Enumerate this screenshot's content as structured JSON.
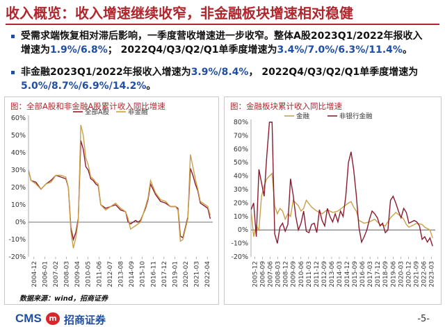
{
  "header": {
    "title": "收入概览：收入增速继续收窄，非金融板块增速相对稳健"
  },
  "bullets": [
    {
      "pre": "受需求端恢复相对滞后影响，一季度营收增速进一步收窄。整体A股2023Q1/2022年报收入增速为",
      "hl1": "1.9%/6.8%",
      "mid": "； 2022Q4/Q3/Q2/Q1单季度增速为",
      "hl2": "3.4%/7.0%/6.3%/11.4%",
      "post": "。"
    },
    {
      "pre": "非金融2023Q1/2022年报收入增速为",
      "hl1": "3.9%/8.4%",
      "mid": "， 2022Q4/Q3/Q2/Q1单季度增速为",
      "hl2": "5.0%/8.7%/6.9%/14.2%",
      "post": "。"
    }
  ],
  "source": "数据来源：wind，招商证券",
  "footer": {
    "cms": "CMS",
    "logo_mark": "m",
    "brand": "招商证券",
    "page": "-5-"
  },
  "colors": {
    "title_red": "#b0262c",
    "accent_blue": "#1f4ea3",
    "series_dark": "#8b1a2e",
    "series_gold": "#c9a046"
  },
  "chart_data": [
    {
      "type": "line",
      "title": "图：全部A股和非金融A股累计收入同比增速",
      "ylim": [
        -20,
        60
      ],
      "yticks": [
        -20,
        -10,
        0,
        10,
        20,
        30,
        40,
        50,
        60
      ],
      "ytick_labels": [
        "-20%",
        "-10%",
        "0%",
        "10%",
        "20%",
        "30%",
        "40%",
        "50%",
        "60%"
      ],
      "x_range": [
        2004.75,
        2023.25
      ],
      "xtick_labels": [
        "2004-12",
        "2006-01",
        "2007-02",
        "2008-03",
        "2009-04",
        "2010-05",
        "2011-06",
        "2012-07",
        "2013-08",
        "2014-09",
        "2015-10",
        "2016-11",
        "2017-12",
        "2019-01",
        "2020-02",
        "2021-03",
        "2022-04"
      ],
      "legend_position": "top-center",
      "series": [
        {
          "name": "全部A股",
          "color": "#8b1a2e",
          "points": [
            [
              2004.75,
              30
            ],
            [
              2005.0,
              24
            ],
            [
              2005.5,
              23
            ],
            [
              2006.0,
              19
            ],
            [
              2006.5,
              22
            ],
            [
              2007.0,
              24
            ],
            [
              2007.5,
              27
            ],
            [
              2008.0,
              26
            ],
            [
              2008.5,
              25
            ],
            [
              2008.75,
              20
            ],
            [
              2009.0,
              -3
            ],
            [
              2009.25,
              -10
            ],
            [
              2009.5,
              -6
            ],
            [
              2009.75,
              2
            ],
            [
              2010.0,
              47
            ],
            [
              2010.25,
              42
            ],
            [
              2010.5,
              32
            ],
            [
              2010.75,
              30
            ],
            [
              2011.0,
              25
            ],
            [
              2011.25,
              24
            ],
            [
              2011.5,
              22
            ],
            [
              2011.75,
              21
            ],
            [
              2012.0,
              10
            ],
            [
              2012.5,
              8
            ],
            [
              2013.0,
              9
            ],
            [
              2013.5,
              10
            ],
            [
              2014.0,
              7
            ],
            [
              2014.5,
              6
            ],
            [
              2014.75,
              0
            ],
            [
              2015.0,
              -1
            ],
            [
              2015.5,
              1
            ],
            [
              2015.75,
              0
            ],
            [
              2016.0,
              1
            ],
            [
              2016.5,
              8
            ],
            [
              2016.75,
              13
            ],
            [
              2017.0,
              22
            ],
            [
              2017.5,
              16
            ],
            [
              2018.0,
              12
            ],
            [
              2018.5,
              11
            ],
            [
              2019.0,
              9
            ],
            [
              2019.5,
              9
            ],
            [
              2019.75,
              8
            ],
            [
              2020.0,
              -8
            ],
            [
              2020.25,
              -9
            ],
            [
              2020.5,
              -3
            ],
            [
              2020.75,
              3
            ],
            [
              2021.0,
              31
            ],
            [
              2021.25,
              27
            ],
            [
              2021.5,
              22
            ],
            [
              2021.75,
              18
            ],
            [
              2022.0,
              11
            ],
            [
              2022.5,
              9
            ],
            [
              2022.75,
              8
            ],
            [
              2023.0,
              2
            ]
          ]
        },
        {
          "name": "非金融",
          "color": "#c9a046",
          "points": [
            [
              2004.75,
              30
            ],
            [
              2005.0,
              24
            ],
            [
              2005.5,
              22
            ],
            [
              2006.0,
              19
            ],
            [
              2006.5,
              22
            ],
            [
              2007.0,
              23
            ],
            [
              2007.5,
              27
            ],
            [
              2008.0,
              27
            ],
            [
              2008.5,
              26
            ],
            [
              2008.75,
              20
            ],
            [
              2009.0,
              -5
            ],
            [
              2009.25,
              -15
            ],
            [
              2009.5,
              -9
            ],
            [
              2009.75,
              1
            ],
            [
              2010.0,
              56
            ],
            [
              2010.25,
              50
            ],
            [
              2010.5,
              37
            ],
            [
              2010.75,
              33
            ],
            [
              2011.0,
              26
            ],
            [
              2011.25,
              25
            ],
            [
              2011.5,
              23
            ],
            [
              2011.75,
              22
            ],
            [
              2012.0,
              10
            ],
            [
              2012.5,
              7
            ],
            [
              2013.0,
              9
            ],
            [
              2013.5,
              11
            ],
            [
              2014.0,
              8
            ],
            [
              2014.5,
              6
            ],
            [
              2014.75,
              2
            ],
            [
              2015.0,
              -4
            ],
            [
              2015.5,
              -2
            ],
            [
              2015.75,
              -1
            ],
            [
              2016.0,
              0
            ],
            [
              2016.5,
              9
            ],
            [
              2016.75,
              14
            ],
            [
              2017.0,
              24
            ],
            [
              2017.5,
              17
            ],
            [
              2018.0,
              13
            ],
            [
              2018.5,
              12
            ],
            [
              2019.0,
              9
            ],
            [
              2019.5,
              9
            ],
            [
              2019.75,
              7
            ],
            [
              2020.0,
              -11
            ],
            [
              2020.25,
              -10
            ],
            [
              2020.5,
              -4
            ],
            [
              2020.75,
              2
            ],
            [
              2021.0,
              39
            ],
            [
              2021.25,
              32
            ],
            [
              2021.5,
              25
            ],
            [
              2021.75,
              19
            ],
            [
              2022.0,
              12
            ],
            [
              2022.5,
              10
            ],
            [
              2022.75,
              9
            ],
            [
              2023.0,
              4
            ]
          ]
        }
      ]
    },
    {
      "type": "line",
      "title": "图：金融板块累计收入同比增速",
      "ylim": [
        -20,
        80
      ],
      "yticks": [
        -20,
        -10,
        0,
        10,
        20,
        30,
        40,
        50,
        60,
        70,
        80
      ],
      "ytick_labels": [
        "-20%",
        "-10%",
        "0%",
        "10%",
        "20%",
        "30%",
        "40%",
        "50%",
        "60%",
        "70%",
        "80%"
      ],
      "x_range": [
        2005.75,
        2023.25
      ],
      "xtick_labels": [
        "2005-12",
        "2006-09",
        "2007-06",
        "2008-03",
        "2008-12",
        "2009-09",
        "2010-06",
        "2011-03",
        "2011-12",
        "2012-09",
        "2013-06",
        "2014-03",
        "2014-12",
        "2015-09",
        "2016-06",
        "2017-03",
        "2017-12",
        "2018-09",
        "2019-06",
        "2020-03",
        "2020-12",
        "2021-09",
        "2022-06",
        "2023-03"
      ],
      "legend_position": "top-center",
      "series": [
        {
          "name": "金融",
          "color": "#c9a046",
          "points": [
            [
              2005.75,
              15
            ],
            [
              2006.0,
              -5
            ],
            [
              2006.25,
              3
            ],
            [
              2006.5,
              0
            ],
            [
              2006.75,
              25
            ],
            [
              2007.0,
              33
            ],
            [
              2007.25,
              38
            ],
            [
              2007.5,
              40
            ],
            [
              2007.75,
              42
            ],
            [
              2008.0,
              18
            ],
            [
              2008.25,
              12
            ],
            [
              2008.5,
              16
            ],
            [
              2008.75,
              14
            ],
            [
              2009.0,
              8
            ],
            [
              2009.25,
              12
            ],
            [
              2009.5,
              10
            ],
            [
              2009.75,
              22
            ],
            [
              2010.0,
              20
            ],
            [
              2010.25,
              18
            ],
            [
              2010.5,
              14
            ],
            [
              2010.75,
              16
            ],
            [
              2011.0,
              22
            ],
            [
              2011.5,
              17
            ],
            [
              2012.0,
              14
            ],
            [
              2012.5,
              12
            ],
            [
              2013.0,
              15
            ],
            [
              2013.5,
              13
            ],
            [
              2014.0,
              14
            ],
            [
              2014.5,
              17
            ],
            [
              2015.0,
              20
            ],
            [
              2015.25,
              21
            ],
            [
              2015.5,
              17
            ],
            [
              2015.75,
              14
            ],
            [
              2016.0,
              7
            ],
            [
              2016.5,
              5
            ],
            [
              2017.0,
              6
            ],
            [
              2017.5,
              8
            ],
            [
              2018.0,
              4
            ],
            [
              2018.5,
              3
            ],
            [
              2019.0,
              9
            ],
            [
              2019.5,
              13
            ],
            [
              2020.0,
              10
            ],
            [
              2020.25,
              8
            ],
            [
              2020.5,
              4
            ],
            [
              2020.75,
              2
            ],
            [
              2021.0,
              3
            ],
            [
              2021.5,
              5
            ],
            [
              2022.0,
              4
            ],
            [
              2022.25,
              2
            ],
            [
              2022.5,
              1
            ],
            [
              2022.75,
              0
            ],
            [
              2023.0,
              -6
            ]
          ]
        },
        {
          "name": "非银行金融",
          "color": "#8b1a2e",
          "points": [
            [
              2005.75,
              15
            ],
            [
              2006.0,
              20
            ],
            [
              2006.25,
              -5
            ],
            [
              2006.5,
              45
            ],
            [
              2006.75,
              35
            ],
            [
              2007.0,
              25
            ],
            [
              2007.25,
              55
            ],
            [
              2007.5,
              80
            ],
            [
              2007.75,
              80
            ],
            [
              2008.0,
              -3
            ],
            [
              2008.25,
              -10
            ],
            [
              2008.5,
              2
            ],
            [
              2008.75,
              5
            ],
            [
              2009.0,
              -1
            ],
            [
              2009.25,
              4
            ],
            [
              2009.5,
              38
            ],
            [
              2009.75,
              26
            ],
            [
              2010.0,
              10
            ],
            [
              2010.25,
              0
            ],
            [
              2010.5,
              5
            ],
            [
              2010.75,
              14
            ],
            [
              2011.0,
              -1
            ],
            [
              2011.25,
              -2
            ],
            [
              2011.5,
              4
            ],
            [
              2011.75,
              5
            ],
            [
              2012.0,
              -2
            ],
            [
              2012.25,
              15
            ],
            [
              2012.5,
              7
            ],
            [
              2012.75,
              3
            ],
            [
              2013.0,
              16
            ],
            [
              2013.25,
              10
            ],
            [
              2013.5,
              6
            ],
            [
              2013.75,
              12
            ],
            [
              2014.0,
              6
            ],
            [
              2014.25,
              14
            ],
            [
              2014.5,
              10
            ],
            [
              2014.75,
              25
            ],
            [
              2015.0,
              50
            ],
            [
              2015.25,
              58
            ],
            [
              2015.5,
              45
            ],
            [
              2015.75,
              26
            ],
            [
              2016.0,
              2
            ],
            [
              2016.25,
              -9
            ],
            [
              2016.5,
              -5
            ],
            [
              2016.75,
              0
            ],
            [
              2017.0,
              8
            ],
            [
              2017.25,
              14
            ],
            [
              2017.5,
              12
            ],
            [
              2017.75,
              9
            ],
            [
              2018.0,
              3
            ],
            [
              2018.25,
              5
            ],
            [
              2018.5,
              -2
            ],
            [
              2018.75,
              0
            ],
            [
              2019.0,
              22
            ],
            [
              2019.25,
              25
            ],
            [
              2019.5,
              20
            ],
            [
              2019.75,
              14
            ],
            [
              2020.0,
              9
            ],
            [
              2020.25,
              16
            ],
            [
              2020.5,
              13
            ],
            [
              2020.75,
              5
            ],
            [
              2021.0,
              6
            ],
            [
              2021.25,
              7
            ],
            [
              2021.5,
              6
            ],
            [
              2021.75,
              3
            ],
            [
              2022.0,
              -7
            ],
            [
              2022.25,
              -5
            ],
            [
              2022.5,
              -9
            ],
            [
              2022.75,
              -6
            ],
            [
              2023.0,
              -12
            ]
          ]
        }
      ]
    }
  ]
}
